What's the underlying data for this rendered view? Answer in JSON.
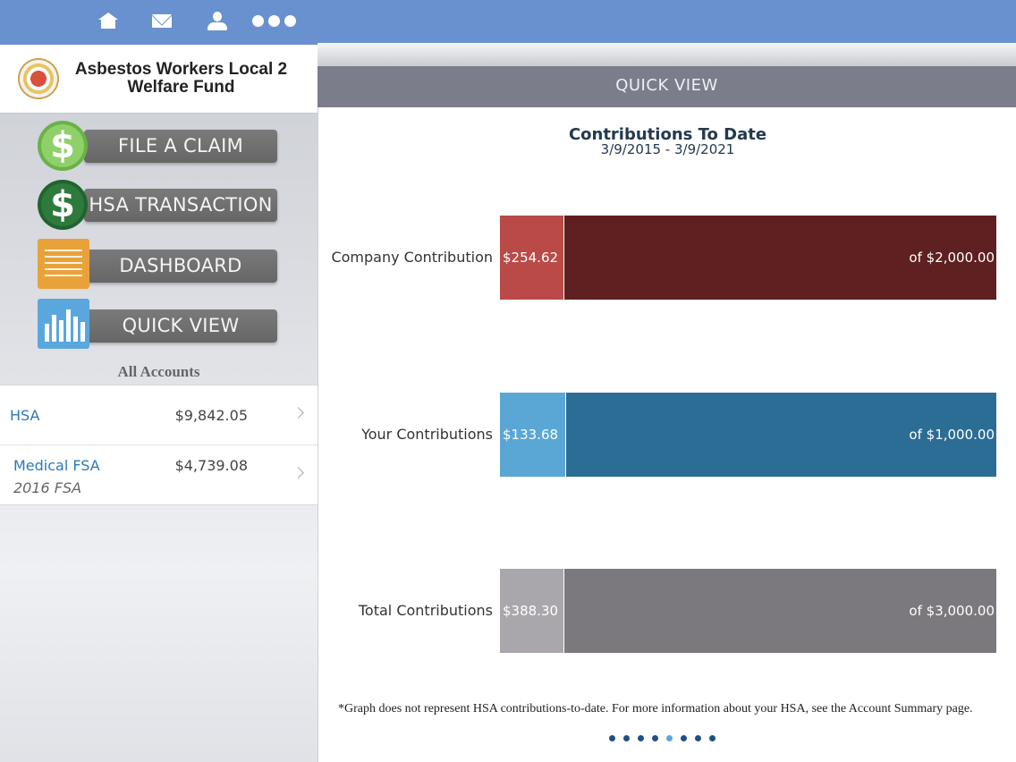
{
  "brand": {
    "name_line1": "Asbestos Workers Local 2",
    "name_line2": "Welfare Fund"
  },
  "top_icons": [
    "home-icon",
    "mail-icon",
    "person-icon",
    "more-icon"
  ],
  "menu": [
    {
      "label": "FILE A CLAIM",
      "icon": "dollar-icon"
    },
    {
      "label": "HSA TRANSACTION",
      "icon": "dollar-icon"
    },
    {
      "label": "DASHBOARD",
      "icon": "document-icon"
    },
    {
      "label": "QUICK VIEW",
      "icon": "bar-chart-icon"
    }
  ],
  "accounts": {
    "heading": "All Accounts",
    "items": [
      {
        "name": "HSA",
        "amount": "$9,842.05",
        "sub": ""
      },
      {
        "name": "Medical FSA",
        "amount": "$4,739.08",
        "sub": "2016 FSA"
      }
    ]
  },
  "header": {
    "title": "QUICK VIEW"
  },
  "chart_data": {
    "type": "bar",
    "title": "Contributions To Date",
    "subtitle": "3/9/2015 - 3/9/2021",
    "categories": [
      "Company Contribution",
      "Your Contributions",
      "Total Contributions"
    ],
    "rows": [
      {
        "label": "Company Contribution",
        "value": 254.62,
        "max": 2000,
        "value_label": "$254.62",
        "max_label": "of $2,000.00",
        "used_color": "#b94a48",
        "rest_color": "#5e2020"
      },
      {
        "label": "Your Contributions",
        "value": 133.68,
        "max": 1000,
        "value_label": "$133.68",
        "max_label": "of $1,000.00",
        "used_color": "#5aa7d6",
        "rest_color": "#2c6d95"
      },
      {
        "label": "Total Contributions",
        "value": 388.3,
        "max": 3000,
        "value_label": "$388.30",
        "max_label": "of $3,000.00",
        "used_color": "#a9a7ab",
        "rest_color": "#7b797d"
      }
    ]
  },
  "note": "*Graph does not represent HSA contributions-to-date. For more information about your HSA, see the Account Summary page.",
  "pager": {
    "count": 8,
    "active": 4
  }
}
